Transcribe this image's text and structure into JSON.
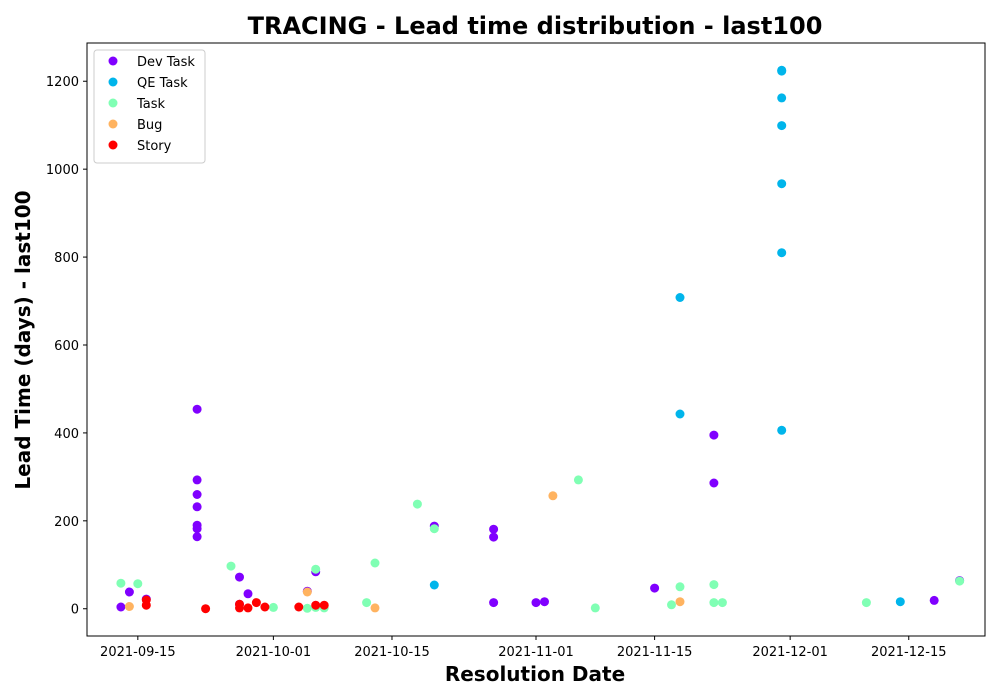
{
  "chart_data": {
    "type": "scatter",
    "title": "TRACING - Lead time distribution - last100",
    "xlabel": "Resolution Date",
    "ylabel": "Lead Time (days) - last100",
    "xlim": [
      "2021-09-09",
      "2021-12-24"
    ],
    "ylim": [
      -62,
      1287
    ],
    "x_ticks": [
      "2021-09-15",
      "2021-10-01",
      "2021-10-15",
      "2021-11-01",
      "2021-11-15",
      "2021-12-01",
      "2021-12-15"
    ],
    "y_ticks": [
      0,
      200,
      400,
      600,
      800,
      1000,
      1200
    ],
    "legend_position": "upper-left",
    "series": [
      {
        "name": "Dev Task",
        "color": "#8000ff",
        "points": [
          [
            "2021-09-13",
            4
          ],
          [
            "2021-09-14",
            38
          ],
          [
            "2021-09-16",
            22
          ],
          [
            "2021-09-22",
            454
          ],
          [
            "2021-09-22",
            293
          ],
          [
            "2021-09-22",
            260
          ],
          [
            "2021-09-22",
            232
          ],
          [
            "2021-09-22",
            190
          ],
          [
            "2021-09-22",
            182
          ],
          [
            "2021-09-22",
            164
          ],
          [
            "2021-09-27",
            72
          ],
          [
            "2021-09-27",
            10
          ],
          [
            "2021-09-28",
            34
          ],
          [
            "2021-10-05",
            40
          ],
          [
            "2021-10-06",
            84
          ],
          [
            "2021-10-20",
            188
          ],
          [
            "2021-10-27",
            181
          ],
          [
            "2021-10-27",
            163
          ],
          [
            "2021-10-27",
            14
          ],
          [
            "2021-11-01",
            14
          ],
          [
            "2021-11-02",
            16
          ],
          [
            "2021-11-15",
            47
          ],
          [
            "2021-11-22",
            395
          ],
          [
            "2021-11-22",
            286
          ],
          [
            "2021-12-18",
            19
          ],
          [
            "2021-12-21",
            64
          ]
        ]
      },
      {
        "name": "QE Task",
        "color": "#00b5eb",
        "points": [
          [
            "2021-10-20",
            54
          ],
          [
            "2021-11-18",
            708
          ],
          [
            "2021-11-18",
            443
          ],
          [
            "2021-11-30",
            1225
          ],
          [
            "2021-11-30",
            1223
          ],
          [
            "2021-11-30",
            1162
          ],
          [
            "2021-11-30",
            1099
          ],
          [
            "2021-11-30",
            967
          ],
          [
            "2021-11-30",
            810
          ],
          [
            "2021-11-30",
            406
          ],
          [
            "2021-12-14",
            16
          ]
        ]
      },
      {
        "name": "Task",
        "color": "#80ffb4",
        "points": [
          [
            "2021-09-13",
            58
          ],
          [
            "2021-09-15",
            57
          ],
          [
            "2021-09-26",
            97
          ],
          [
            "2021-10-01",
            3
          ],
          [
            "2021-10-05",
            1
          ],
          [
            "2021-10-06",
            90
          ],
          [
            "2021-10-06",
            3
          ],
          [
            "2021-10-07",
            2
          ],
          [
            "2021-10-12",
            14
          ],
          [
            "2021-10-13",
            104
          ],
          [
            "2021-10-18",
            238
          ],
          [
            "2021-10-20",
            182
          ],
          [
            "2021-11-06",
            293
          ],
          [
            "2021-11-08",
            2
          ],
          [
            "2021-11-17",
            9
          ],
          [
            "2021-11-18",
            50
          ],
          [
            "2021-11-22",
            55
          ],
          [
            "2021-11-22",
            14
          ],
          [
            "2021-11-23",
            14
          ],
          [
            "2021-12-10",
            14
          ],
          [
            "2021-12-21",
            63
          ]
        ]
      },
      {
        "name": "Bug",
        "color": "#ffb360",
        "points": [
          [
            "2021-09-14",
            5
          ],
          [
            "2021-10-05",
            38
          ],
          [
            "2021-10-13",
            2
          ],
          [
            "2021-11-03",
            257
          ],
          [
            "2021-11-18",
            16
          ]
        ]
      },
      {
        "name": "Story",
        "color": "#ff0000",
        "points": [
          [
            "2021-09-16",
            8
          ],
          [
            "2021-09-16",
            20
          ],
          [
            "2021-09-23",
            0
          ],
          [
            "2021-09-27",
            10
          ],
          [
            "2021-09-27",
            2
          ],
          [
            "2021-09-28",
            2
          ],
          [
            "2021-09-29",
            14
          ],
          [
            "2021-09-30",
            4
          ],
          [
            "2021-10-04",
            4
          ],
          [
            "2021-10-06",
            8
          ],
          [
            "2021-10-07",
            8
          ]
        ]
      }
    ]
  }
}
